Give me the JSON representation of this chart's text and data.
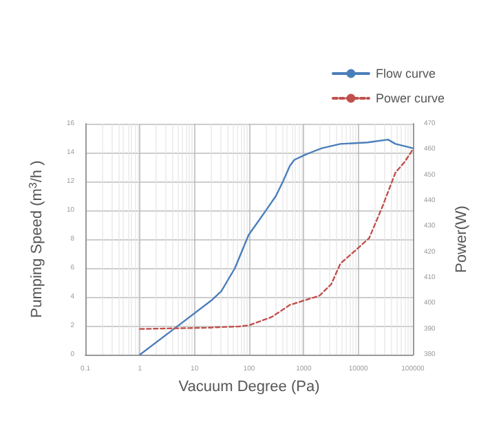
{
  "chart_data": {
    "type": "line",
    "xlabel": "Vacuum Degree (Pa)",
    "ylabel": "Pumping Speed (m$^{3}$/h )",
    "y2label": "Power(W)",
    "log": "x",
    "grid": true,
    "legend": "top right",
    "marker": "none",
    "xlim": [
      0.1,
      100000
    ],
    "xticks": [
      0.1,
      1,
      10,
      100,
      1000,
      10000,
      100000
    ],
    "ylim": [
      0,
      16
    ],
    "yticks": [
      0,
      2,
      4,
      6,
      8,
      10,
      12,
      14,
      16
    ],
    "y2lim": [
      380,
      470
    ],
    "y2ticks": [
      380,
      390,
      400,
      410,
      420,
      430,
      440,
      450,
      460,
      470
    ],
    "series": [
      {
        "name": "Flow curve",
        "color": "#4a7ebb",
        "line_style": "solid",
        "x": [
          1,
          4.6,
          21,
          31,
          55,
          98,
          145,
          213,
          310,
          417,
          560,
          676,
          1000,
          1330,
          2150,
          4700,
          14700,
          35000,
          48000,
          100000
        ],
        "values": [
          0,
          1.9,
          3.8,
          4.4,
          6.0,
          8.3,
          9.2,
          10.1,
          11.0,
          12.0,
          13.1,
          13.5,
          13.8,
          14.0,
          14.3,
          14.6,
          14.7,
          14.9,
          14.6,
          14.3
        ]
      },
      {
        "name": "Power curve",
        "color": "#c0504d",
        "line_style": "dashed",
        "axis": "y2",
        "x": [
          1,
          17,
          65,
          98,
          255,
          560,
          1950,
          3200,
          4700,
          8200,
          15800,
          28000,
          48000,
          70000,
          100000
        ],
        "values": [
          390,
          390.5,
          391,
          391.4,
          394.6,
          399.4,
          403,
          407.5,
          415.5,
          420,
          425.4,
          438,
          451,
          455,
          460
        ]
      }
    ]
  }
}
